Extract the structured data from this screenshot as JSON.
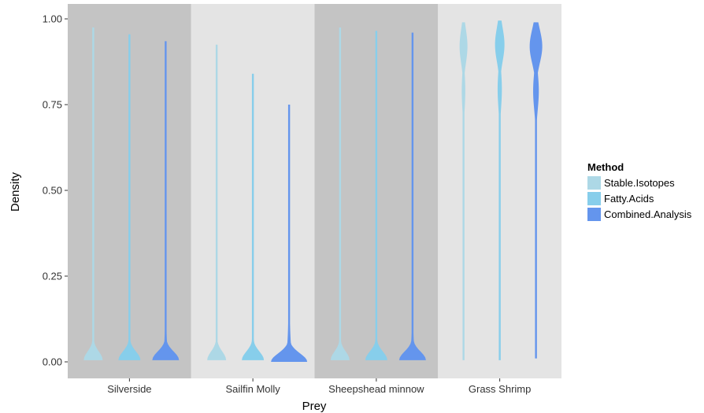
{
  "chart_data": {
    "type": "violin",
    "title": "",
    "xlabel": "Prey",
    "ylabel": "Density",
    "ylim": [
      0,
      1
    ],
    "yticks": [
      "0.00",
      "0.25",
      "0.50",
      "0.75",
      "1.00"
    ],
    "categories": [
      "Silverside",
      "Sailfin Molly",
      "Sheepshead minnow",
      "Grass Shrimp"
    ],
    "category_backgrounds": [
      "#c4c4c4",
      "#e4e4e4",
      "#c4c4c4",
      "#e4e4e4"
    ],
    "grid": false,
    "legend": {
      "title": "Method",
      "position": "right",
      "entries": [
        "Stable.Isotopes",
        "Fatty.Acids",
        "Combined.Analysis"
      ]
    },
    "series": [
      {
        "name": "Stable.Isotopes",
        "color": "#add8e6",
        "ranges": [
          [
            0.005,
            0.975
          ],
          [
            0.005,
            0.925
          ],
          [
            0.005,
            0.975
          ],
          [
            0.005,
            0.99
          ]
        ]
      },
      {
        "name": "Fatty.Acids",
        "color": "#87ceeb",
        "ranges": [
          [
            0.005,
            0.955
          ],
          [
            0.005,
            0.84
          ],
          [
            0.005,
            0.965
          ],
          [
            0.005,
            0.995
          ]
        ]
      },
      {
        "name": "Combined.Analysis",
        "color": "#6495ed",
        "ranges": [
          [
            0.005,
            0.935
          ],
          [
            0.0,
            0.75
          ],
          [
            0.005,
            0.96
          ],
          [
            0.01,
            0.99
          ]
        ]
      }
    ]
  }
}
